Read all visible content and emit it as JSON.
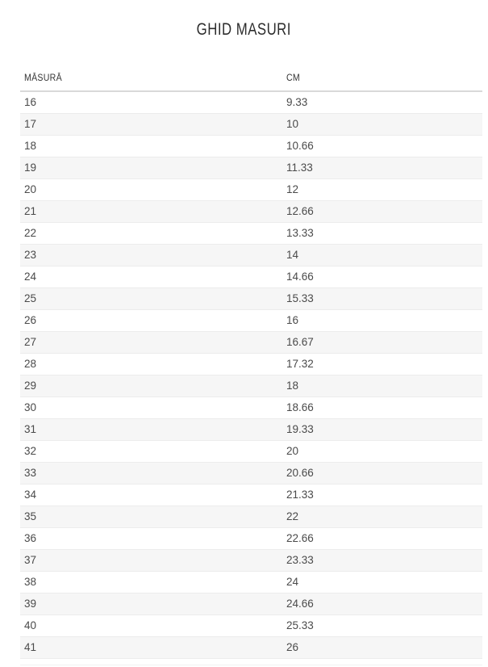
{
  "page": {
    "title": "GHID MASURI"
  },
  "table": {
    "columns": [
      "MĂSURĂ",
      "CM"
    ],
    "rows": [
      [
        "16",
        "9.33"
      ],
      [
        "17",
        "10"
      ],
      [
        "18",
        "10.66"
      ],
      [
        "19",
        "11.33"
      ],
      [
        "20",
        "12"
      ],
      [
        "21",
        "12.66"
      ],
      [
        "22",
        "13.33"
      ],
      [
        "23",
        "14"
      ],
      [
        "24",
        "14.66"
      ],
      [
        "25",
        "15.33"
      ],
      [
        "26",
        "16"
      ],
      [
        "27",
        "16.67"
      ],
      [
        "28",
        "17.32"
      ],
      [
        "29",
        "18"
      ],
      [
        "30",
        "18.66"
      ],
      [
        "31",
        "19.33"
      ],
      [
        "32",
        "20"
      ],
      [
        "33",
        "20.66"
      ],
      [
        "34",
        "21.33"
      ],
      [
        "35",
        "22"
      ],
      [
        "36",
        "22.66"
      ],
      [
        "37",
        "23.33"
      ],
      [
        "38",
        "24"
      ],
      [
        "39",
        "24.66"
      ],
      [
        "40",
        "25.33"
      ],
      [
        "41",
        "26"
      ]
    ]
  },
  "chart_data": {
    "type": "table",
    "title": "GHID MASURI",
    "columns": [
      "MĂSURĂ",
      "CM"
    ],
    "rows": [
      [
        "16",
        "9.33"
      ],
      [
        "17",
        "10"
      ],
      [
        "18",
        "10.66"
      ],
      [
        "19",
        "11.33"
      ],
      [
        "20",
        "12"
      ],
      [
        "21",
        "12.66"
      ],
      [
        "22",
        "13.33"
      ],
      [
        "23",
        "14"
      ],
      [
        "24",
        "14.66"
      ],
      [
        "25",
        "15.33"
      ],
      [
        "26",
        "16"
      ],
      [
        "27",
        "16.67"
      ],
      [
        "28",
        "17.32"
      ],
      [
        "29",
        "18"
      ],
      [
        "30",
        "18.66"
      ],
      [
        "31",
        "19.33"
      ],
      [
        "32",
        "20"
      ],
      [
        "33",
        "20.66"
      ],
      [
        "34",
        "21.33"
      ],
      [
        "35",
        "22"
      ],
      [
        "36",
        "22.66"
      ],
      [
        "37",
        "23.33"
      ],
      [
        "38",
        "24"
      ],
      [
        "39",
        "24.66"
      ],
      [
        "40",
        "25.33"
      ],
      [
        "41",
        "26"
      ]
    ]
  },
  "colors": {
    "text": "#4a4a4a",
    "header_text": "#333333",
    "title_text": "#2d2d2d",
    "row_alt_bg": "#f6f6f6",
    "row_border": "#ececec",
    "header_border": "#d9d9d9",
    "background": "#ffffff"
  }
}
